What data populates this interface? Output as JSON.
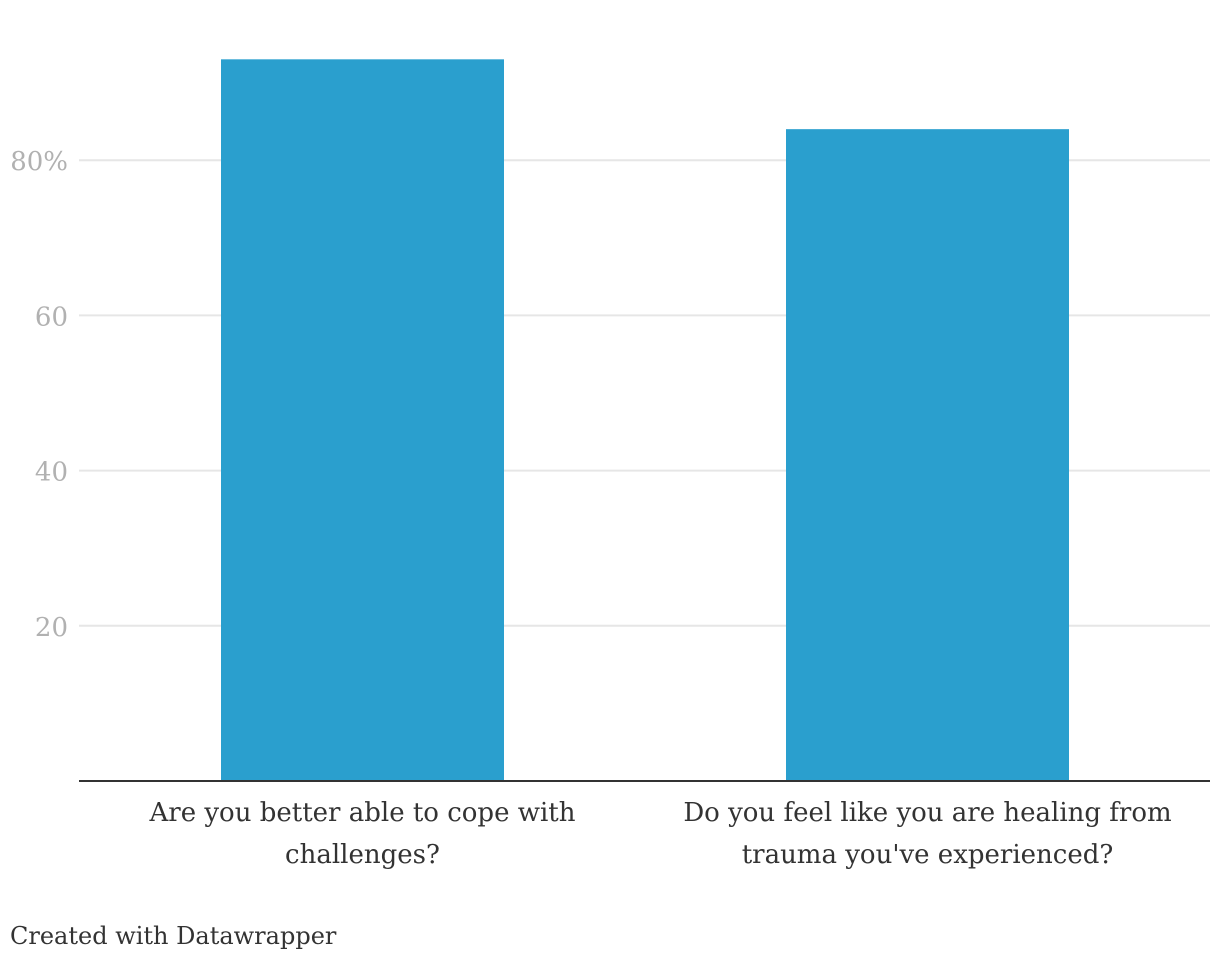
{
  "chart_data": {
    "type": "bar",
    "categories": [
      [
        "Are you better able to cope with",
        "challenges?"
      ],
      [
        "Do you feel like you are healing from",
        "trauma you've experienced?"
      ]
    ],
    "values": [
      93,
      84
    ],
    "ylim": [
      0,
      100
    ],
    "yticks": [
      20,
      40,
      60,
      80
    ],
    "ytick_labels": [
      "20",
      "40",
      "60",
      "80%"
    ],
    "grid": true,
    "bar_color": "#2a9fce",
    "title": "",
    "xlabel": "",
    "ylabel": ""
  },
  "footer": {
    "credit": "Created with Datawrapper"
  }
}
